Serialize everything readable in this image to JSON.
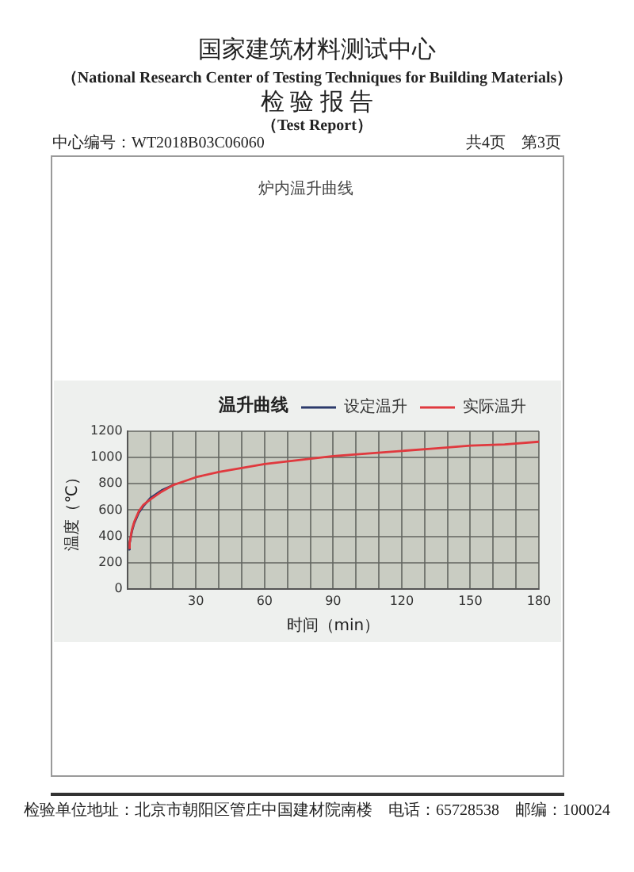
{
  "chart_data": {
    "type": "line",
    "title": "温升曲线",
    "xlabel": "时间（min）",
    "ylabel": "温度（℃）",
    "x": [
      0.5,
      1,
      2,
      3,
      5,
      7,
      10,
      15,
      20,
      25,
      30,
      40,
      50,
      60,
      75,
      90,
      105,
      120,
      135,
      150,
      165,
      180
    ],
    "series": [
      {
        "name": "设定温升",
        "color": "#2b3a6b",
        "values": [
          300,
          350,
          440,
          500,
          580,
          630,
          690,
          750,
          790,
          null,
          null,
          null,
          null,
          null,
          null,
          null,
          null,
          null,
          null,
          null,
          null,
          null
        ]
      },
      {
        "name": "实际温升",
        "color": "#e0393e",
        "values": [
          310,
          350,
          450,
          510,
          590,
          640,
          680,
          740,
          790,
          820,
          850,
          890,
          920,
          950,
          980,
          1010,
          1030,
          1050,
          1070,
          1090,
          1100,
          1120
        ]
      }
    ],
    "xlim": [
      0,
      180
    ],
    "xticks": [
      {
        "value": 10,
        "label": null
      },
      {
        "value": 20,
        "label": null
      },
      30,
      {
        "value": 40,
        "label": null
      },
      {
        "value": 50,
        "label": null
      },
      60,
      {
        "value": 70,
        "label": null
      },
      {
        "value": 80,
        "label": null
      },
      90,
      {
        "value": 100,
        "label": null
      },
      {
        "value": 110,
        "label": null
      },
      120,
      {
        "value": 130,
        "label": null
      },
      {
        "value": 140,
        "label": null
      },
      150,
      {
        "value": 160,
        "label": null
      },
      {
        "value": 170,
        "label": null
      },
      180
    ],
    "ylim": [
      0,
      1200
    ],
    "yticks": [
      0,
      200,
      400,
      600,
      800,
      1000,
      1200
    ],
    "grid": true,
    "legend": "top right",
    "marker": "none",
    "line_style": "solid",
    "annotations": [
      "国家建筑材料测试中心",
      "（National Research Center of Testing Techniques for Building Materials）",
      "检 验 报 告",
      "（Test Report）",
      "中心编号：WT2018B03C06060",
      "共4页　第3页",
      "炉内温升曲线",
      "检验单位地址：北京市朝阳区管庄中国建材院南楼",
      "电话：65728538",
      "邮编：100024"
    ]
  }
}
